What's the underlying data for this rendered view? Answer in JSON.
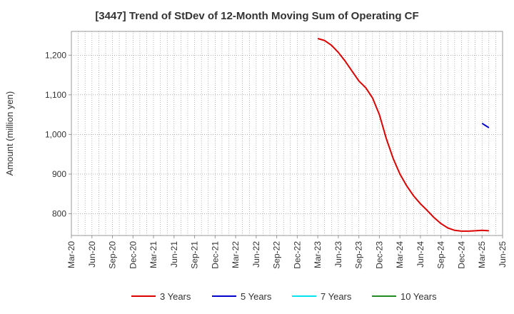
{
  "chart_data": {
    "type": "line",
    "title": "[3447]  Trend of StDev of 12-Month Moving Sum of Operating CF",
    "xlabel": "",
    "ylabel": "Amount (million yen)",
    "x_ticks": [
      "Mar-20",
      "Jun-20",
      "Sep-20",
      "Dec-20",
      "Mar-21",
      "Jun-21",
      "Sep-21",
      "Dec-21",
      "Mar-22",
      "Jun-22",
      "Sep-22",
      "Dec-22",
      "Mar-23",
      "Jun-23",
      "Sep-23",
      "Dec-23",
      "Mar-24",
      "Jun-24",
      "Sep-24",
      "Dec-24",
      "Mar-25",
      "Jun-25"
    ],
    "y_ticks": [
      800,
      900,
      1000,
      1100,
      1200
    ],
    "y_tick_labels": [
      "800",
      "900",
      "1,000",
      "1,100",
      "1,200"
    ],
    "ylim": [
      745,
      1260
    ],
    "grid": true,
    "legend_position": "bottom",
    "series": [
      {
        "name": "3 Years",
        "color": "#dd0000",
        "points": [
          [
            "Mar-23",
            1242
          ],
          [
            "Apr-23",
            1237
          ],
          [
            "May-23",
            1225
          ],
          [
            "Jun-23",
            1207
          ],
          [
            "Jul-23",
            1185
          ],
          [
            "Aug-23",
            1160
          ],
          [
            "Sep-23",
            1135
          ],
          [
            "Oct-23",
            1118
          ],
          [
            "Nov-23",
            1092
          ],
          [
            "Dec-23",
            1050
          ],
          [
            "Jan-24",
            990
          ],
          [
            "Feb-24",
            940
          ],
          [
            "Mar-24",
            900
          ],
          [
            "Apr-24",
            870
          ],
          [
            "May-24",
            845
          ],
          [
            "Jun-24",
            825
          ],
          [
            "Jul-24",
            808
          ],
          [
            "Aug-24",
            790
          ],
          [
            "Sep-24",
            775
          ],
          [
            "Oct-24",
            764
          ],
          [
            "Nov-24",
            758
          ],
          [
            "Dec-24",
            756
          ],
          [
            "Jan-25",
            756
          ],
          [
            "Feb-25",
            757
          ],
          [
            "Mar-25",
            758
          ],
          [
            "Apr-25",
            757
          ]
        ]
      },
      {
        "name": "5 Years",
        "color": "#0000cc",
        "points": [
          [
            "Mar-25",
            1028
          ],
          [
            "Apr-25",
            1017
          ]
        ]
      },
      {
        "name": "7 Years",
        "color": "#00e5ee",
        "points": []
      },
      {
        "name": "10 Years",
        "color": "#228b22",
        "points": []
      }
    ]
  }
}
